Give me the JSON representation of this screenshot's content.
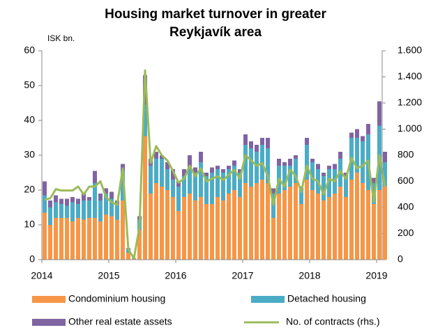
{
  "chart_data": {
    "type": "stacked_bar_line",
    "title": "Housing market turnover in greater Reykjavík area",
    "y_label": "ISK bn.",
    "categories": [
      "2014",
      null,
      null,
      null,
      null,
      null,
      null,
      null,
      null,
      null,
      null,
      null,
      "2015",
      null,
      null,
      null,
      null,
      null,
      null,
      null,
      null,
      null,
      null,
      null,
      "2016",
      null,
      null,
      null,
      null,
      null,
      null,
      null,
      null,
      null,
      null,
      null,
      "2017",
      null,
      null,
      null,
      null,
      null,
      null,
      null,
      null,
      null,
      null,
      null,
      "2018",
      null,
      null,
      null,
      null,
      null,
      null,
      null,
      null,
      null,
      null,
      null,
      "2019",
      null
    ],
    "series": [
      {
        "name": "Condominium housing",
        "color": "#f79646",
        "values": [
          13.5,
          10,
          12,
          12,
          12,
          11,
          12,
          11.5,
          12,
          12,
          11,
          13,
          12.5,
          11.5,
          17,
          2,
          0.3,
          8.5,
          35.5,
          19,
          22,
          21,
          20,
          18,
          14,
          18,
          19,
          17,
          18,
          16,
          16,
          18,
          17,
          19,
          20,
          18,
          22,
          21,
          22,
          23,
          22,
          12,
          19,
          20,
          21,
          22,
          16,
          23,
          20,
          19,
          17,
          18,
          19,
          21,
          18,
          23,
          25,
          22,
          20,
          16,
          20,
          21
        ]
      },
      {
        "name": "Detached housing",
        "color": "#4bacc6",
        "values": [
          5,
          5,
          4.5,
          4,
          3.5,
          5.5,
          4,
          5.5,
          5,
          10,
          6,
          6,
          5,
          4.5,
          8.5,
          1,
          0.2,
          3,
          9,
          8,
          7,
          8,
          6,
          5,
          7,
          6,
          7,
          8,
          10,
          8,
          9,
          8,
          8,
          7,
          7,
          7,
          11,
          11,
          9,
          10,
          10,
          7,
          8,
          7,
          6,
          7,
          4,
          10,
          8,
          7,
          7,
          8,
          7,
          8,
          6,
          12,
          10,
          12,
          16,
          6,
          18.5,
          7
        ]
      },
      {
        "name": "Other real estate assets",
        "color": "#8064a2",
        "values": [
          4,
          2,
          2,
          1.5,
          2,
          1.5,
          1.5,
          2,
          1,
          3.5,
          2,
          1.5,
          2,
          1,
          2,
          0.3,
          0,
          1,
          8.5,
          2,
          2,
          1,
          2,
          3,
          1.5,
          2,
          4,
          1.5,
          3,
          1,
          1.5,
          1,
          1,
          1,
          1.5,
          1,
          3,
          2,
          2,
          2,
          3,
          1.5,
          2,
          1,
          2,
          1,
          1,
          2,
          1,
          1.5,
          1,
          1,
          1.5,
          2,
          1,
          1.5,
          2.5,
          1.5,
          3,
          1.5,
          7,
          3
        ]
      },
      {
        "name": "No. of contracts (rhs.)",
        "color": "#9bbb59",
        "axis": "y2",
        "values": [
          460,
          470,
          540,
          530,
          530,
          530,
          560,
          500,
          560,
          560,
          600,
          480,
          440,
          420,
          700,
          80,
          10,
          250,
          1450,
          740,
          870,
          800,
          760,
          680,
          590,
          620,
          720,
          640,
          700,
          600,
          620,
          640,
          610,
          650,
          690,
          620,
          800,
          760,
          720,
          740,
          640,
          420,
          620,
          560,
          690,
          640,
          520,
          720,
          620,
          600,
          500,
          620,
          600,
          680,
          620,
          780,
          700,
          720,
          760,
          440,
          800,
          560
        ]
      }
    ],
    "ylim": [
      0,
      60
    ],
    "yticks": [
      0,
      10,
      20,
      30,
      40,
      50,
      60
    ],
    "y2lim": [
      0,
      1600
    ],
    "y2ticks": [
      0,
      200,
      400,
      600,
      800,
      {
        "value": 1000,
        "label": "1.000"
      },
      {
        "value": 1200,
        "label": "1.200"
      },
      {
        "value": 1400,
        "label": "1.400"
      },
      {
        "value": 1600,
        "label": "1.600"
      }
    ]
  }
}
